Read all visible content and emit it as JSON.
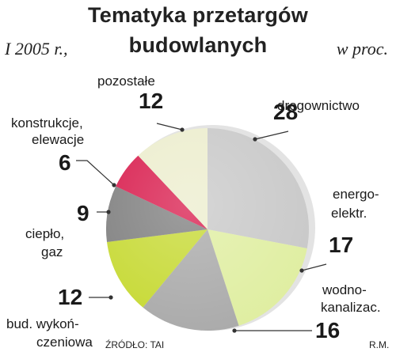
{
  "header": {
    "title_line1": "Tematyka przetargów",
    "title_line2": "budowlanych",
    "period": "I 2005 r.,",
    "unit": "w proc."
  },
  "footer": {
    "source": "ŹRÓDŁO: TAI",
    "author": "R.M."
  },
  "chart_data": {
    "type": "pie",
    "title": "Tematyka przetargów budowlanych",
    "period": "I 2005 r.,",
    "unit": "w proc.",
    "slices": [
      {
        "label_line1": "drogownictwo",
        "label_line2": "",
        "value": 28,
        "color": "#c8c8c8"
      },
      {
        "label_line1": "energo-",
        "label_line2": "elektr.",
        "value": 17,
        "color": "#dfeea0"
      },
      {
        "label_line1": "wodno-",
        "label_line2": "kanalizac.",
        "value": 16,
        "color": "#a9a9a9"
      },
      {
        "label_line1": "bud. wykoń-",
        "label_line2": "czeniowa",
        "value": 12,
        "color": "#c6d932"
      },
      {
        "label_line1": "ciepło,",
        "label_line2": "gaz",
        "value": 9,
        "color": "#7e7e7e"
      },
      {
        "label_line1": "konstrukcje,",
        "label_line2": "elewacje",
        "value": 6,
        "color": "#d81b4c"
      },
      {
        "label_line1": "pozostałe",
        "label_line2": "",
        "value": 12,
        "color": "#ecedcd"
      }
    ]
  }
}
